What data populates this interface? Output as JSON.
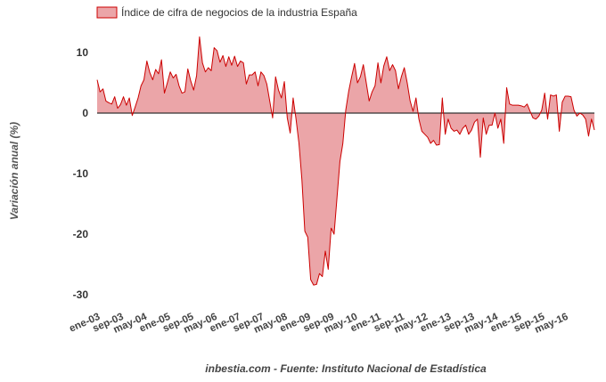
{
  "chart_data": {
    "type": "area",
    "legend": {
      "label": "Índice de cifra de negocios de la industria España",
      "position": "top-left"
    },
    "ylabel": "Variación anual (%)",
    "source_note": "inbestia.com - Fuente: Instituto Nacional de Estadística",
    "ylim": [
      -30,
      10
    ],
    "yticks": [
      10,
      0,
      -10,
      -20,
      -30
    ],
    "grid": false,
    "x_start": "2003-01",
    "x_end": "2016-07",
    "xticks": [
      {
        "label": "ene-03",
        "month": 0
      },
      {
        "label": "sep-03",
        "month": 8
      },
      {
        "label": "may-04",
        "month": 16
      },
      {
        "label": "ene-05",
        "month": 24
      },
      {
        "label": "sep-05",
        "month": 32
      },
      {
        "label": "may-06",
        "month": 40
      },
      {
        "label": "ene-07",
        "month": 48
      },
      {
        "label": "sep-07",
        "month": 56
      },
      {
        "label": "may-08",
        "month": 64
      },
      {
        "label": "ene-09",
        "month": 72
      },
      {
        "label": "sep-09",
        "month": 80
      },
      {
        "label": "may-10",
        "month": 88
      },
      {
        "label": "ene-11",
        "month": 96
      },
      {
        "label": "sep-11",
        "month": 104
      },
      {
        "label": "may-12",
        "month": 112
      },
      {
        "label": "ene-13",
        "month": 120
      },
      {
        "label": "sep-13",
        "month": 128
      },
      {
        "label": "may-14",
        "month": 136
      },
      {
        "label": "ene-15",
        "month": 144
      },
      {
        "label": "sep-15",
        "month": 152
      },
      {
        "label": "may-16",
        "month": 160
      }
    ],
    "colors": {
      "line": "#cc0000",
      "fill": "#eba5a8",
      "zero_line": "#333333"
    },
    "series": [
      {
        "name": "Índice de cifra de negocios de la industria España",
        "values": [
          5.5,
          3.5,
          4.0,
          2.0,
          1.7,
          1.5,
          2.7,
          0.8,
          1.4,
          2.7,
          1.3,
          2.5,
          -0.4,
          1.0,
          2.5,
          4.5,
          5.5,
          8.6,
          6.7,
          5.5,
          7.2,
          6.5,
          8.8,
          3.3,
          5.0,
          6.8,
          5.8,
          6.4,
          4.5,
          3.3,
          3.5,
          7.3,
          5.3,
          3.8,
          6.2,
          12.6,
          8.3,
          6.8,
          7.5,
          7.0,
          10.8,
          10.3,
          8.4,
          9.5,
          7.7,
          9.3,
          7.9,
          9.4,
          7.7,
          8.6,
          8.3,
          4.8,
          6.3,
          6.3,
          6.8,
          4.5,
          6.8,
          6.2,
          4.8,
          2.0,
          -0.8,
          6.0,
          3.8,
          2.5,
          5.2,
          -0.8,
          -3.3,
          2.5,
          -1.0,
          -5.0,
          -11.0,
          -19.5,
          -20.5,
          -27.5,
          -28.4,
          -28.3,
          -26.5,
          -27.0,
          -22.8,
          -25.8,
          -19.0,
          -20.0,
          -14.0,
          -8.0,
          -5.0,
          0.5,
          3.6,
          6.0,
          8.2,
          5.0,
          6.0,
          8.0,
          5.0,
          2.0,
          3.5,
          4.5,
          8.3,
          5.0,
          7.8,
          9.3,
          7.0,
          8.0,
          7.0,
          4.0,
          6.0,
          7.5,
          5.0,
          2.0,
          0.3,
          2.5,
          -1.0,
          -3.0,
          -3.5,
          -4.0,
          -5.0,
          -4.5,
          -5.3,
          -5.2,
          2.5,
          -3.5,
          -1.0,
          -2.5,
          -3.0,
          -2.8,
          -3.5,
          -2.5,
          -2.0,
          -3.5,
          -2.8,
          -1.5,
          -1.0,
          -7.3,
          -0.8,
          -3.5,
          -2.0,
          -2.0,
          0.0,
          -2.5,
          -1.0,
          -5.0,
          4.2,
          1.5,
          1.3,
          1.3,
          1.3,
          1.2,
          1.0,
          1.5,
          0.3,
          -0.8,
          -1.0,
          -0.5,
          0.5,
          3.3,
          -1.0,
          3.0,
          2.8,
          3.0,
          -3.0,
          1.8,
          2.8,
          2.8,
          2.7,
          0.5,
          -0.5,
          0.0,
          -0.3,
          -1.0,
          -3.8,
          -1.0,
          -2.8
        ]
      }
    ]
  }
}
